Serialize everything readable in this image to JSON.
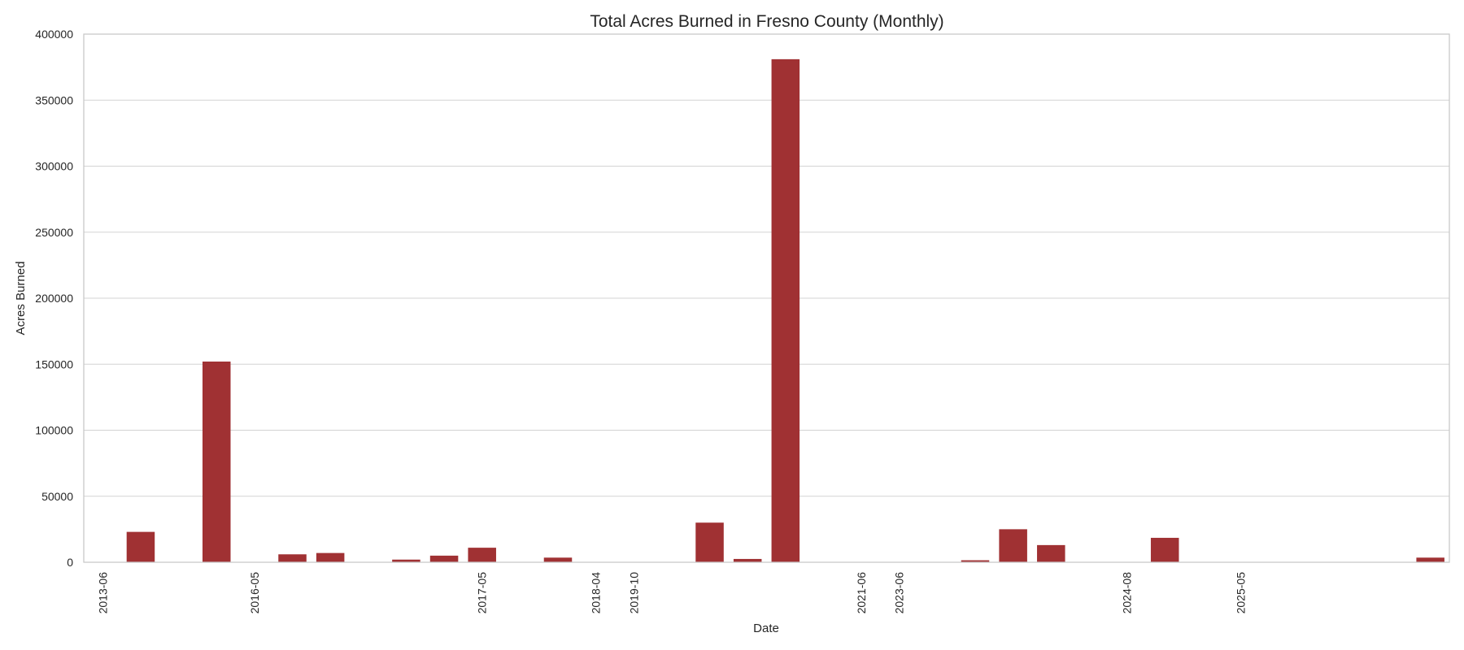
{
  "chart_data": {
    "type": "bar",
    "title": "Total Acres Burned in Fresno County (Monthly)",
    "xlabel": "Date",
    "ylabel": "Acres Burned",
    "ylim": [
      0,
      400000
    ],
    "yticks": [
      0,
      50000,
      100000,
      150000,
      200000,
      250000,
      300000,
      350000,
      400000
    ],
    "categories": [
      "2013-06",
      "2013-07",
      "2013-08",
      "2015-08",
      "2016-05",
      "2016-06",
      "2016-07",
      "2016-08",
      "2017-02",
      "2017-04",
      "2017-05",
      "2017-06",
      "2017-07",
      "2018-04",
      "2019-10",
      "2020-02",
      "2020-03",
      "2020-04",
      "2020-08",
      "2020-09",
      "2021-06",
      "2023-06",
      "2023-08",
      "2023-11",
      "2024-04",
      "2024-06",
      "2024-07",
      "2024-08",
      "2024-09",
      "2024-10",
      "2025-05",
      "2025-06",
      "2025-07",
      "2025-08",
      "2025-09",
      "2025-10"
    ],
    "values": [
      0,
      23000,
      0,
      152000,
      0,
      6000,
      7000,
      0,
      2000,
      5000,
      11000,
      0,
      3500,
      0,
      0,
      0,
      30000,
      2500,
      381000,
      0,
      0,
      0,
      0,
      1500,
      25000,
      13000,
      0,
      0,
      18500,
      0,
      0,
      0,
      0,
      0,
      0,
      3500
    ],
    "xticks": [
      "2013-06",
      "2016-05",
      "2017-05",
      "2018-04",
      "2019-10",
      "2021-06",
      "2023-06",
      "2024-08",
      "2025-05"
    ],
    "bar_color": "#a03133",
    "grid": "y",
    "legend": "none"
  }
}
